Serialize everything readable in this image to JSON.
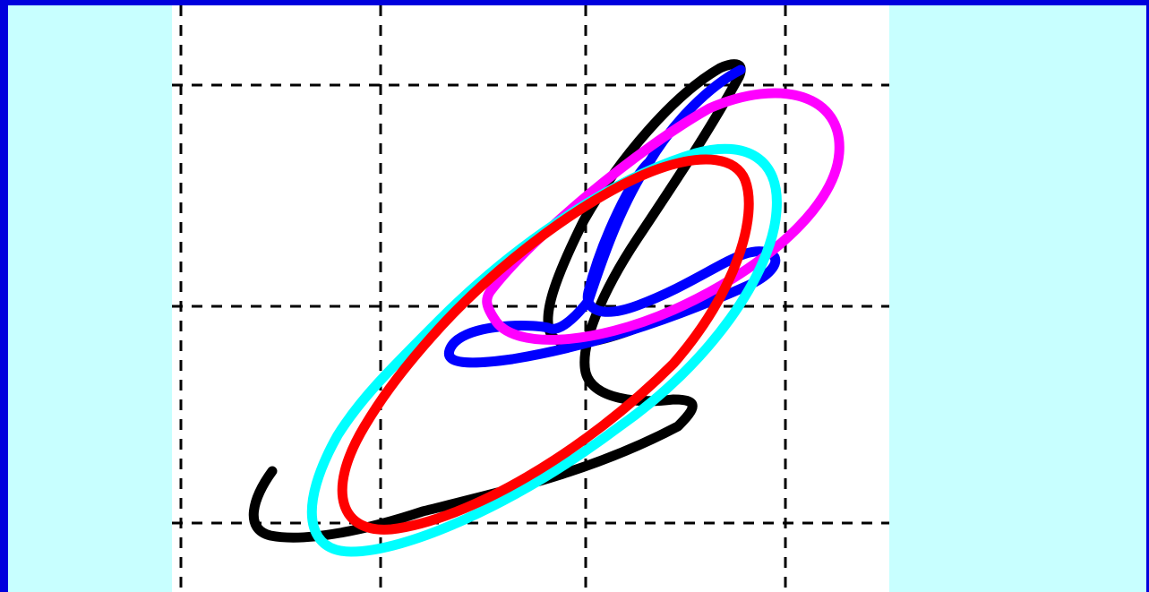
{
  "chart_data": {
    "type": "line",
    "grid": true,
    "grid_style": "dashed",
    "axis_labels_visible": false,
    "series": [
      {
        "color": "#000000"
      },
      {
        "color": "#0000ff"
      },
      {
        "color": "#ff00ff"
      },
      {
        "color": "#00ffff"
      },
      {
        "color": "#ff0000"
      }
    ]
  }
}
